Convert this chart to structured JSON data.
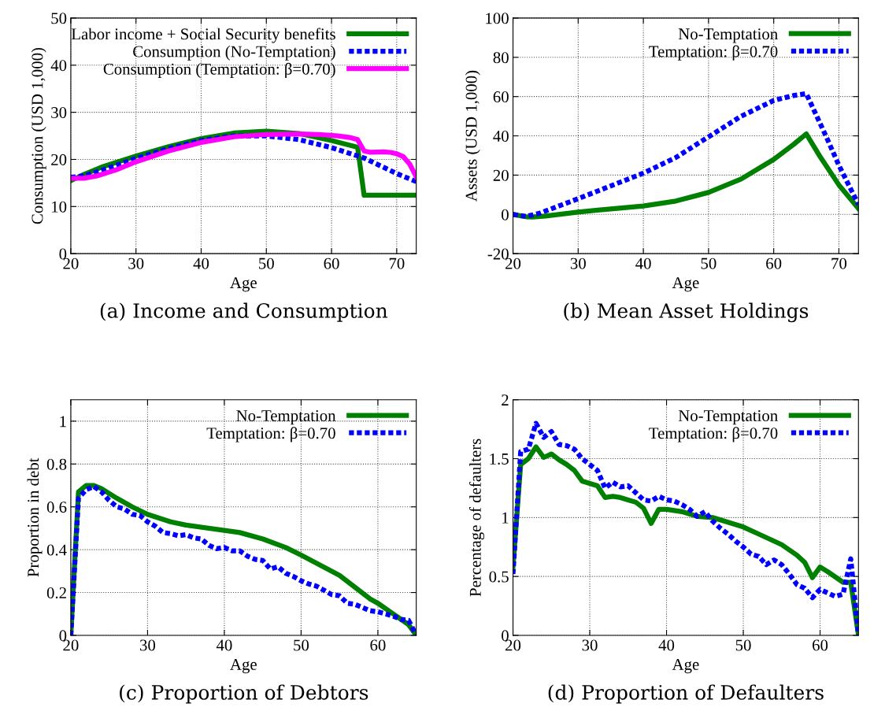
{
  "chart_data": [
    {
      "type": "line",
      "title": "(a) Income and Consumption",
      "xlabel": "Age",
      "ylabel": "Consumption (USD 1,000)",
      "xlim": [
        20,
        73
      ],
      "xticks": [
        20,
        30,
        40,
        50,
        60,
        70
      ],
      "ylim": [
        0,
        50
      ],
      "yticks": [
        0,
        10,
        20,
        30,
        40,
        50
      ],
      "grid": true,
      "legend": "top right",
      "series": [
        {
          "name": "Labor income + Social Security benefits",
          "color": "#008000",
          "line_style": "solid",
          "x": [
            20,
            22,
            25,
            30,
            35,
            40,
            45,
            50,
            55,
            60,
            64,
            65,
            73
          ],
          "values": [
            15.5,
            16.8,
            18.5,
            20.7,
            22.7,
            24.4,
            25.6,
            26.0,
            25.5,
            24.0,
            22.6,
            12.4,
            12.4
          ]
        },
        {
          "name": "Consumption (No-Temptation)",
          "color": "#0000ff",
          "line_style": "dotted",
          "x": [
            20,
            22,
            25,
            30,
            35,
            40,
            45,
            50,
            55,
            60,
            65,
            70,
            73
          ],
          "values": [
            16.2,
            16.5,
            17.8,
            20.2,
            22.3,
            24.0,
            25.0,
            25.0,
            24.2,
            22.5,
            20.3,
            17.0,
            15.3
          ]
        },
        {
          "name": "Consumption (Temptation: β=0.70)",
          "color": "#ff00ff",
          "line_style": "solid",
          "x": [
            20,
            22,
            24,
            27,
            30,
            35,
            40,
            45,
            50,
            55,
            58,
            61,
            63,
            64,
            65,
            66,
            68,
            69,
            70,
            71,
            72,
            73
          ],
          "values": [
            16.0,
            16.0,
            16.5,
            17.8,
            19.5,
            21.8,
            23.6,
            24.8,
            25.3,
            25.4,
            25.3,
            25.0,
            24.6,
            24.2,
            21.8,
            21.5,
            21.6,
            21.5,
            21.2,
            20.6,
            19.0,
            16.3
          ]
        }
      ]
    },
    {
      "type": "line",
      "title": "(b) Mean Asset Holdings",
      "xlabel": "Age",
      "ylabel": "Assets (USD 1,000)",
      "xlim": [
        20,
        73
      ],
      "xticks": [
        20,
        30,
        40,
        50,
        60,
        70
      ],
      "ylim": [
        -20,
        100
      ],
      "yticks": [
        -20,
        0,
        20,
        40,
        60,
        80,
        100
      ],
      "grid": true,
      "legend": "top right",
      "series": [
        {
          "name": "No-Temptation",
          "color": "#008000",
          "line_style": "solid",
          "x": [
            20,
            22,
            23,
            25,
            30,
            35,
            40,
            45,
            50,
            55,
            60,
            63,
            65,
            67,
            70,
            73
          ],
          "values": [
            0,
            -1.2,
            -1.3,
            -0.8,
            1.2,
            2.8,
            4.3,
            6.8,
            11.2,
            18.0,
            28.0,
            35.5,
            41,
            30,
            15,
            3
          ]
        },
        {
          "name": "Temptation: β=0.70",
          "color": "#0000ff",
          "line_style": "dotted",
          "x": [
            20,
            22,
            24,
            30,
            35,
            40,
            45,
            50,
            55,
            60,
            63,
            65,
            68,
            70,
            73
          ],
          "values": [
            0,
            -1,
            0.5,
            8,
            14.5,
            21,
            29,
            39.5,
            50,
            58,
            60.5,
            61.5,
            40,
            25,
            5
          ]
        }
      ]
    },
    {
      "type": "line",
      "title": "(c) Proportion of Debtors",
      "xlabel": "Age",
      "ylabel": "Proportion in debt",
      "xlim": [
        20,
        65
      ],
      "xticks": [
        20,
        30,
        40,
        50,
        60
      ],
      "ylim": [
        0,
        1.1
      ],
      "yticks": [
        0,
        0.2,
        0.4,
        0.6,
        0.8,
        1
      ],
      "grid": true,
      "legend": "top right",
      "series": [
        {
          "name": "No-Temptation",
          "color": "#008000",
          "line_style": "solid",
          "x": [
            20,
            21,
            22,
            23,
            24,
            26,
            28,
            30,
            33,
            35,
            40,
            42,
            45,
            48,
            50,
            55,
            59,
            60,
            62,
            64,
            65
          ],
          "values": [
            0,
            0.67,
            0.7,
            0.7,
            0.685,
            0.64,
            0.6,
            0.565,
            0.53,
            0.515,
            0.49,
            0.48,
            0.45,
            0.41,
            0.375,
            0.28,
            0.17,
            0.15,
            0.1,
            0.05,
            0.0
          ]
        },
        {
          "name": "Temptation: β=0.70",
          "color": "#0000ff",
          "line_style": "dotted",
          "x": [
            20,
            21,
            22,
            23,
            24,
            25,
            26,
            27,
            28,
            29,
            30,
            31,
            32,
            33,
            34,
            35,
            36,
            37,
            38,
            39,
            40,
            41,
            42,
            43,
            44,
            45,
            46,
            47,
            48,
            49,
            50,
            51,
            52,
            53,
            54,
            55,
            56,
            57,
            58,
            59,
            60,
            61,
            62,
            63,
            64,
            65
          ],
          "values": [
            0,
            0.64,
            0.68,
            0.695,
            0.67,
            0.63,
            0.6,
            0.59,
            0.565,
            0.56,
            0.53,
            0.51,
            0.48,
            0.475,
            0.465,
            0.47,
            0.455,
            0.45,
            0.42,
            0.405,
            0.41,
            0.395,
            0.395,
            0.37,
            0.355,
            0.35,
            0.31,
            0.32,
            0.29,
            0.275,
            0.255,
            0.24,
            0.23,
            0.21,
            0.19,
            0.185,
            0.15,
            0.145,
            0.13,
            0.115,
            0.11,
            0.1,
            0.09,
            0.075,
            0.07,
            0.0
          ]
        }
      ]
    },
    {
      "type": "line",
      "title": "(d) Proportion of Defaulters",
      "xlabel": "Age",
      "ylabel": "Percentage of defaulters",
      "xlim": [
        20,
        65
      ],
      "xticks": [
        20,
        30,
        40,
        50,
        60
      ],
      "ylim": [
        0,
        2
      ],
      "yticks": [
        0,
        0.5,
        1,
        1.5,
        2
      ],
      "grid": true,
      "legend": "top right",
      "series": [
        {
          "name": "No-Temptation",
          "color": "#008000",
          "line_style": "solid",
          "x": [
            20,
            21,
            22,
            23,
            24,
            25,
            26,
            27,
            28,
            29,
            30,
            31,
            32,
            33,
            34,
            35,
            36,
            37,
            38,
            39,
            40,
            42,
            44,
            46,
            48,
            50,
            52,
            54,
            55,
            57,
            58,
            59,
            60,
            61,
            63,
            64,
            65
          ],
          "values": [
            0.58,
            1.45,
            1.5,
            1.6,
            1.51,
            1.54,
            1.49,
            1.45,
            1.4,
            1.31,
            1.29,
            1.27,
            1.17,
            1.18,
            1.17,
            1.15,
            1.13,
            1.08,
            0.95,
            1.07,
            1.07,
            1.05,
            1.01,
            1.0,
            0.96,
            0.92,
            0.86,
            0.8,
            0.77,
            0.68,
            0.62,
            0.49,
            0.58,
            0.54,
            0.45,
            0.45,
            0.0
          ]
        },
        {
          "name": "Temptation: β=0.70",
          "color": "#0000ff",
          "line_style": "dotted",
          "x": [
            20,
            21,
            22,
            23,
            24,
            25,
            26,
            27,
            28,
            29,
            30,
            31,
            32,
            33,
            34,
            35,
            36,
            37,
            38,
            39,
            40,
            41,
            42,
            43,
            44,
            45,
            46,
            47,
            48,
            49,
            50,
            51,
            52,
            53,
            54,
            55,
            56,
            57,
            58,
            59,
            60,
            61,
            62,
            63,
            64,
            65
          ],
          "values": [
            0.52,
            1.56,
            1.58,
            1.8,
            1.68,
            1.73,
            1.62,
            1.61,
            1.58,
            1.5,
            1.45,
            1.4,
            1.25,
            1.3,
            1.26,
            1.27,
            1.21,
            1.15,
            1.14,
            1.18,
            1.15,
            1.14,
            1.11,
            1.07,
            1.01,
            1.05,
            0.97,
            0.91,
            0.86,
            0.8,
            0.75,
            0.69,
            0.67,
            0.6,
            0.64,
            0.6,
            0.52,
            0.43,
            0.4,
            0.32,
            0.39,
            0.36,
            0.33,
            0.35,
            0.65,
            0.0
          ]
        }
      ]
    }
  ]
}
